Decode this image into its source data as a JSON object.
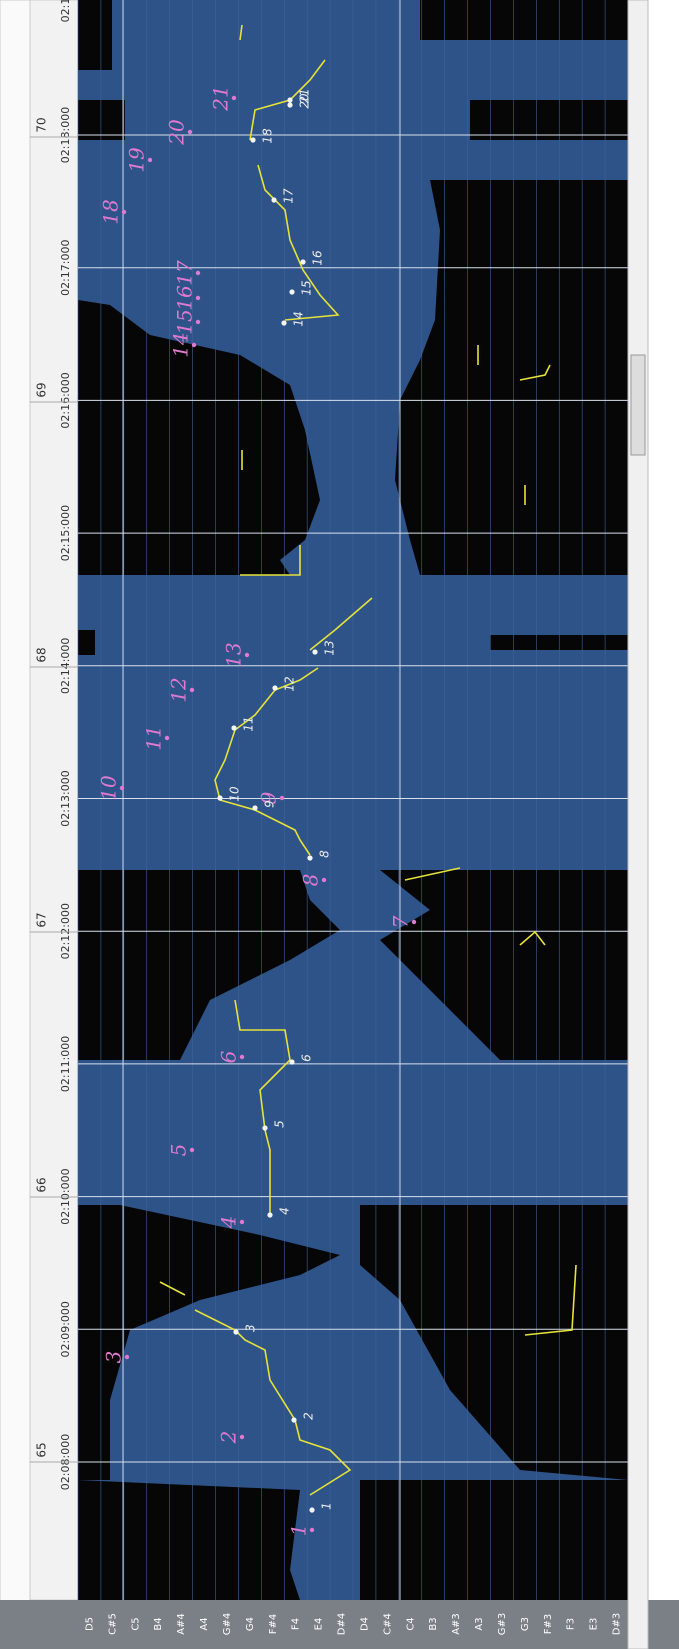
{
  "time_labels": [
    "02:1",
    "02:18:000",
    "02:17:000",
    "02:16:000",
    "02:15:000",
    "02:14:000",
    "02:13:000",
    "02:12:000",
    "02:11:000",
    "02:10:000",
    "02:09:000",
    "02:08:000"
  ],
  "measures": [
    "70",
    "69",
    "68",
    "67",
    "66",
    "65"
  ],
  "notes": [
    "D5",
    "C#5",
    "C5",
    "B4",
    "A#4",
    "A4",
    "G#4",
    "G4",
    "F#4",
    "F4",
    "E4",
    "D#4",
    "D4",
    "C#4",
    "C4",
    "B3",
    "A#3",
    "A3",
    "G#3",
    "G3",
    "F#3",
    "F3",
    "E3",
    "D#3"
  ],
  "annotations": {
    "pink": [
      "1",
      "2",
      "3",
      "4",
      "5",
      "6",
      "7",
      "8",
      "9",
      "10",
      "11",
      "12",
      "13",
      "14",
      "15",
      "16",
      "17",
      "18",
      "19",
      "20",
      "21"
    ],
    "white": [
      "1",
      "2",
      "3",
      "4",
      "5",
      "6",
      "8",
      "9",
      "10",
      "11",
      "12",
      "13",
      "14",
      "15",
      "16",
      "17",
      "18",
      "20",
      "21"
    ]
  }
}
